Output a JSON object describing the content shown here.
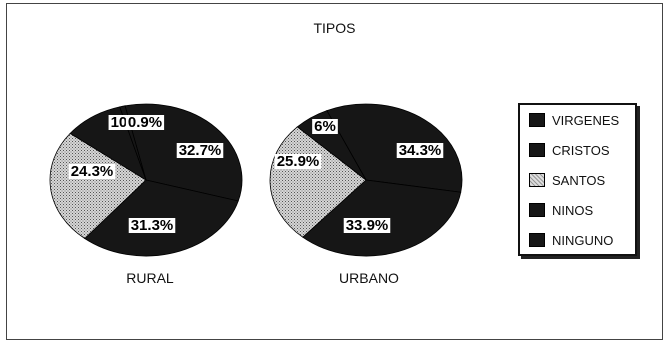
{
  "chart_data": {
    "type": "pie",
    "title": "TIPOS",
    "legend_placement": "right",
    "categories": [
      "VIRGENES",
      "CRISTOS",
      "SANTOS",
      "NINOS",
      "NINGUNO"
    ],
    "colors": [
      "#161616",
      "#161616",
      "#b8b8b8",
      "#161616",
      "#161616"
    ],
    "pies": [
      {
        "name": "RURAL",
        "slices": [
          {
            "category": "VIRGENES",
            "value": 32.7,
            "label": "32.7%"
          },
          {
            "category": "NINGUNO",
            "value": 31.3,
            "label": "31.3%"
          },
          {
            "category": "SANTOS",
            "value": 24.3,
            "label": "24.3%"
          },
          {
            "category": "NINOS",
            "value": 10.0,
            "label": "10."
          },
          {
            "category": "CRISTOS",
            "value": 0.9,
            "label": "0.9%"
          }
        ]
      },
      {
        "name": "URBANO",
        "slices": [
          {
            "category": "VIRGENES",
            "value": 34.3,
            "label": "34.3%"
          },
          {
            "category": "NINGUNO",
            "value": 33.9,
            "label": "33.9%"
          },
          {
            "category": "SANTOS",
            "value": 25.9,
            "label": "25.9%"
          },
          {
            "category": "CRISTOS",
            "value": 6,
            "label": "6%"
          }
        ]
      }
    ]
  }
}
